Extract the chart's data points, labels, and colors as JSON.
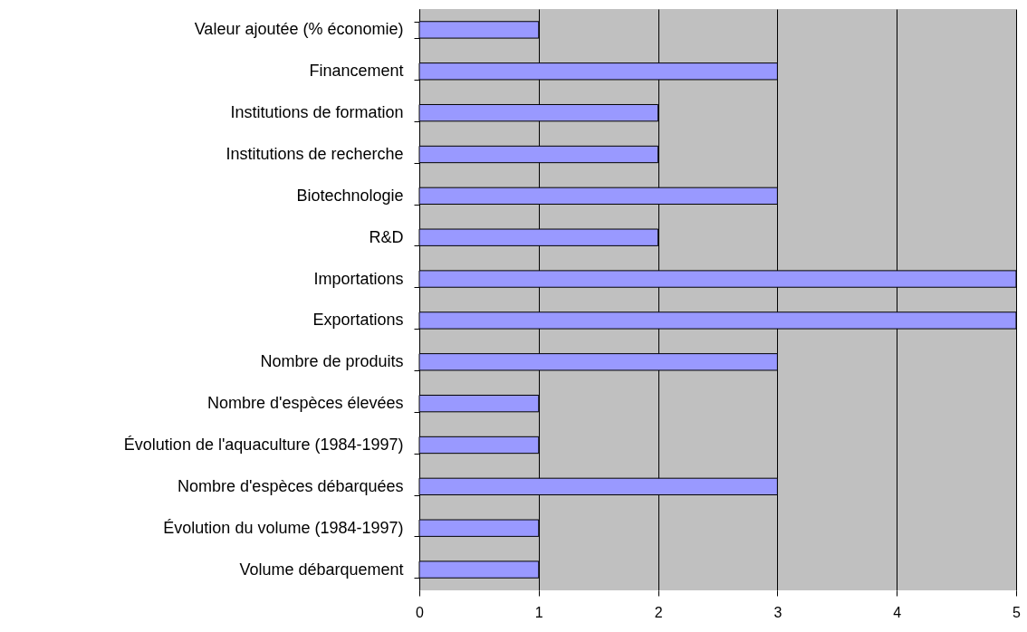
{
  "chart_data": {
    "type": "bar",
    "orientation": "horizontal",
    "categories": [
      "Valeur ajoutée (% économie)",
      "Financement",
      "Institutions de formation",
      "Institutions de recherche",
      "Biotechnologie",
      "R&D",
      "Importations",
      "Exportations",
      "Nombre de produits",
      "Nombre d'espèces élevées",
      "Évolution de l'aquaculture (1984-1997)",
      "Nombre d'espèces débarquées",
      "Évolution du volume (1984-1997)",
      "Volume débarquement"
    ],
    "values": [
      1,
      3,
      2,
      2,
      3,
      2,
      5,
      5,
      3,
      1,
      1,
      3,
      1,
      1
    ],
    "color": "#9999ff",
    "xlim": [
      0,
      5
    ],
    "xticks": [
      0,
      1,
      2,
      3,
      4,
      5
    ],
    "grid": "x"
  }
}
